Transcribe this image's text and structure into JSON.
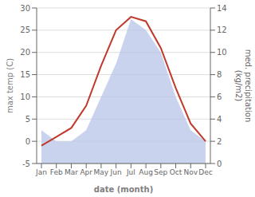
{
  "chart_data": {
    "type": "line",
    "categories": [
      "Jan",
      "Feb",
      "Mar",
      "Apr",
      "May",
      "Jun",
      "Jul",
      "Aug",
      "Sep",
      "Oct",
      "Nov",
      "Dec"
    ],
    "xlabel": "date (month)",
    "ylabel": "max temp (C)",
    "y2label": "med. precipitation\n(kg/m2)",
    "series": [
      {
        "type": "area",
        "axis": "y2",
        "color": "#b8c4e8",
        "values": [
          3,
          2,
          2,
          3,
          6,
          9,
          13,
          12,
          10,
          6,
          3,
          2
        ]
      },
      {
        "type": "line",
        "color": "#c0392b",
        "values": [
          -1,
          1,
          3,
          8,
          17,
          25,
          28,
          27,
          21,
          12,
          4,
          0
        ]
      }
    ],
    "ylim": [
      -5,
      30
    ],
    "yticks": [
      -5,
      0,
      5,
      10,
      15,
      20,
      25,
      30
    ],
    "y2lim": [
      0,
      14
    ],
    "y2ticks": [
      0,
      2,
      4,
      6,
      8,
      10,
      12,
      14
    ],
    "grid": true
  }
}
